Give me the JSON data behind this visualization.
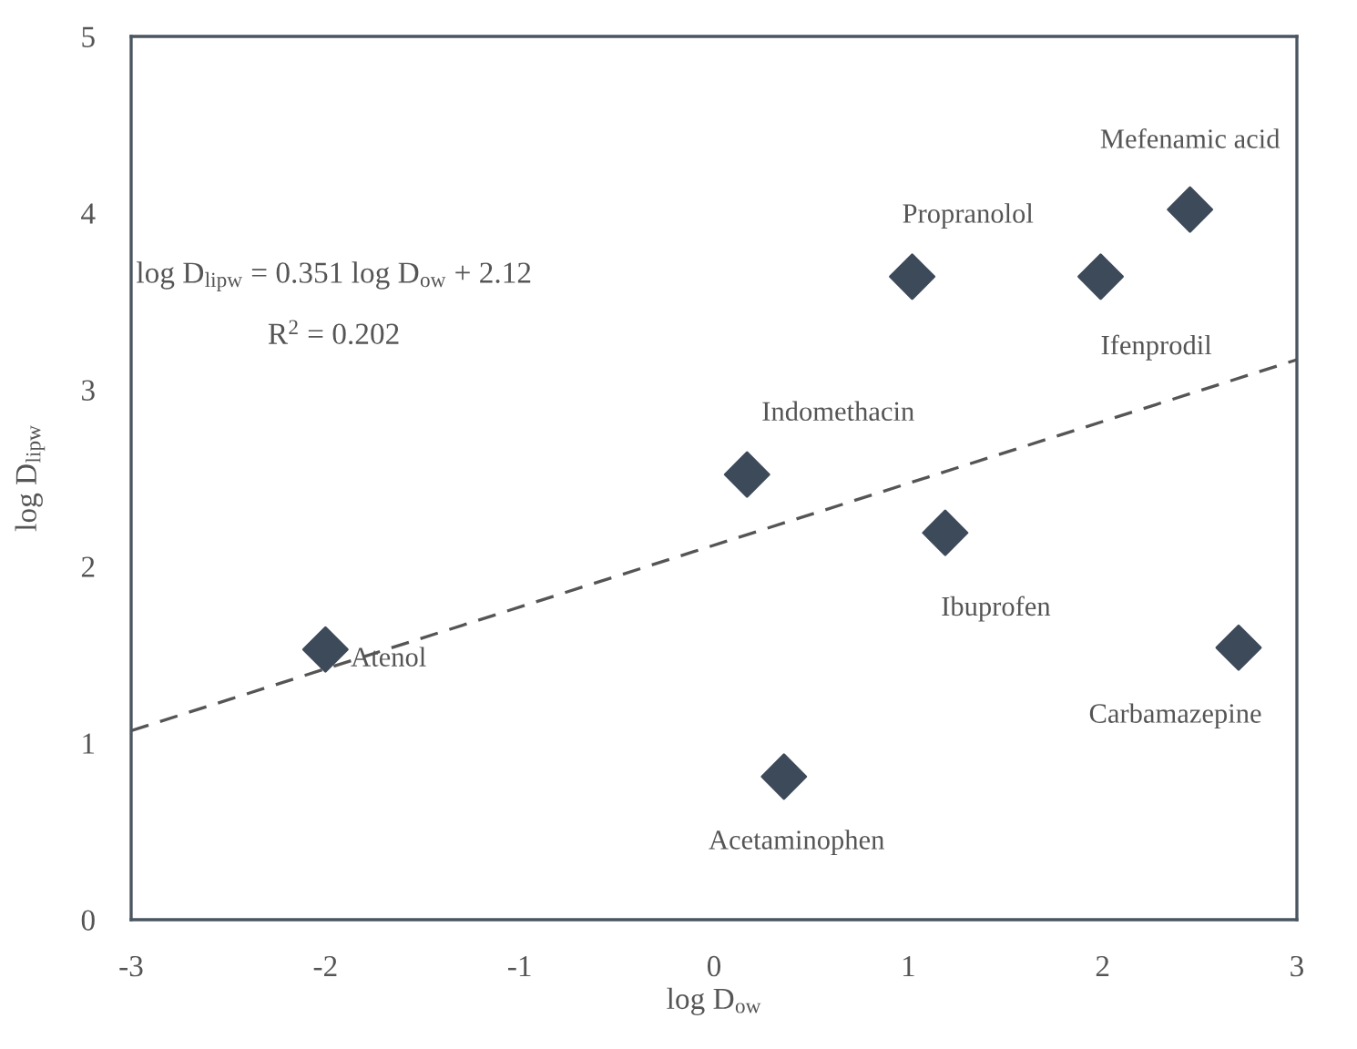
{
  "chart_data": {
    "type": "scatter",
    "xlabel": "log D$_{ow}$",
    "ylabel": "log D$_{lipw}$",
    "series": [
      {
        "color": "#3d4a5a",
        "marker": "diamond",
        "x": [
          -2.0,
          0.17,
          0.36,
          1.19,
          1.02,
          1.99,
          2.45,
          2.7
        ],
        "values": [
          1.53,
          2.52,
          0.81,
          2.19,
          3.64,
          3.64,
          4.02,
          1.54
        ]
      },
      {
        "type": "line",
        "color": "#555555",
        "line_style": "dashed",
        "marker": "none",
        "x": [
          -3,
          3
        ],
        "values": [
          1.07,
          3.17
        ]
      }
    ],
    "annotations": [
      {
        "text": "Atenol",
        "x": -2.0,
        "y": 1.53
      },
      {
        "text": "Indomethacin",
        "x": 0.17,
        "y": 2.52
      },
      {
        "text": "Acetaminophen",
        "x": 0.36,
        "y": 0.81
      },
      {
        "text": "Ibuprofen",
        "x": 1.19,
        "y": 2.19
      },
      {
        "text": "Propranolol",
        "x": 1.02,
        "y": 3.64
      },
      {
        "text": "Ifenprodil",
        "x": 1.99,
        "y": 3.64
      },
      {
        "text": "Mefenamic acid",
        "x": 2.45,
        "y": 4.02
      },
      {
        "text": "Carbamazepine",
        "x": 2.7,
        "y": 1.54
      },
      "log D$_{lipw}$ = 0.351 log D$_{ow}$ + 2.12",
      "R$^{2}$ = 0.202"
    ],
    "xlim": [
      -3,
      3
    ],
    "xticks": [
      -3,
      -2,
      -1,
      0,
      1,
      2,
      3
    ],
    "ylim": [
      0,
      5
    ],
    "yticks": [
      0,
      1,
      2,
      3,
      4,
      5
    ],
    "grid": false
  }
}
